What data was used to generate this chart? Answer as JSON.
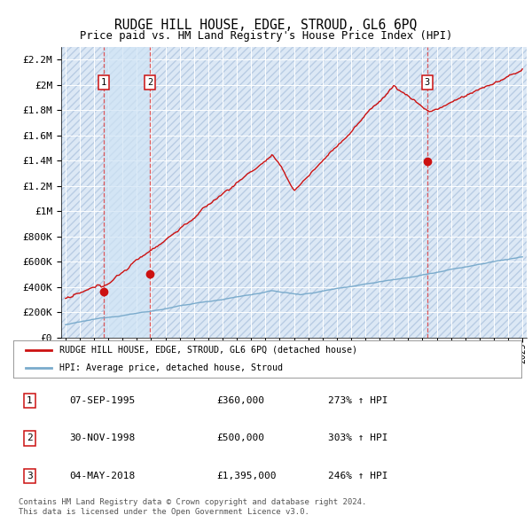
{
  "title": "RUDGE HILL HOUSE, EDGE, STROUD, GL6 6PQ",
  "subtitle": "Price paid vs. HM Land Registry's House Price Index (HPI)",
  "background_color": "#f0f4ff",
  "sale_prices": [
    360000,
    500000,
    1395000
  ],
  "sale_year_floats": [
    1995.69,
    1998.92,
    2018.34
  ],
  "red_line_color": "#cc1111",
  "blue_line_color": "#6699bb",
  "vline_color": "#dd3333",
  "ylim": [
    0,
    2300000
  ],
  "yticks": [
    0,
    200000,
    400000,
    600000,
    800000,
    1000000,
    1200000,
    1400000,
    1600000,
    1800000,
    2000000,
    2200000
  ],
  "ytick_labels": [
    "£0",
    "£200K",
    "£400K",
    "£600K",
    "£800K",
    "£1M",
    "£1.2M",
    "£1.4M",
    "£1.6M",
    "£1.8M",
    "£2M",
    "£2.2M"
  ],
  "legend_entry1": "RUDGE HILL HOUSE, EDGE, STROUD, GL6 6PQ (detached house)",
  "legend_entry2": "HPI: Average price, detached house, Stroud",
  "table_data": [
    [
      "1",
      "07-SEP-1995",
      "£360,000",
      "273% ↑ HPI"
    ],
    [
      "2",
      "30-NOV-1998",
      "£500,000",
      "303% ↑ HPI"
    ],
    [
      "3",
      "04-MAY-2018",
      "£1,395,000",
      "246% ↑ HPI"
    ]
  ],
  "footer": "Contains HM Land Registry data © Crown copyright and database right 2024.\nThis data is licensed under the Open Government Licence v3.0."
}
